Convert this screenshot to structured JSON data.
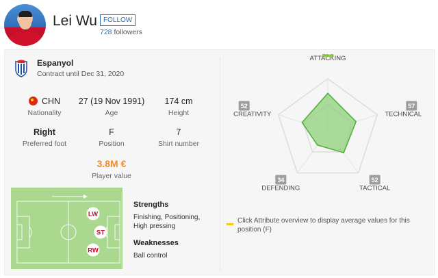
{
  "player": {
    "name": "Lei Wu",
    "follow_label": "FOLLOW",
    "followers_count": "728",
    "followers_label": "followers"
  },
  "club": {
    "name": "Espanyol",
    "contract": "Contract until Dec 31, 2020"
  },
  "stats": {
    "nationality": {
      "value": "CHN",
      "label": "Nationality"
    },
    "age": {
      "value": "27 (19 Nov 1991)",
      "label": "Age"
    },
    "height": {
      "value": "174 cm",
      "label": "Height"
    },
    "foot": {
      "value": "Right",
      "label": "Preferred foot"
    },
    "position": {
      "value": "F",
      "label": "Position"
    },
    "shirt": {
      "value": "7",
      "label": "Shirt number"
    },
    "market_value": {
      "value": "3.8M €",
      "label": "Player value"
    }
  },
  "pitch_positions": [
    "LW",
    "ST",
    "RW"
  ],
  "strengths": {
    "title": "Strengths",
    "items": "Finishing, Positioning, High pressing"
  },
  "weaknesses": {
    "title": "Weaknesses",
    "items": "Ball control"
  },
  "attributes": [
    {
      "name": "ATTACKING",
      "value": 72,
      "highlight": true
    },
    {
      "name": "TECHNICAL",
      "value": 57
    },
    {
      "name": "TACTICAL",
      "value": 52
    },
    {
      "name": "DEFENDING",
      "value": 34
    },
    {
      "name": "CREATIVITY",
      "value": 52
    }
  ],
  "legend_text": "Click Attribute overview to display average values for this position (F)",
  "colors": {
    "accent": "#2d6cb5",
    "radar_fill": "#8fd07a",
    "radar_stroke": "#4caf35",
    "value_orange": "#f28c28",
    "legend_yellow": "#f6c913",
    "pitch_green": "#a9d88e",
    "position_red": "#c8102e"
  }
}
